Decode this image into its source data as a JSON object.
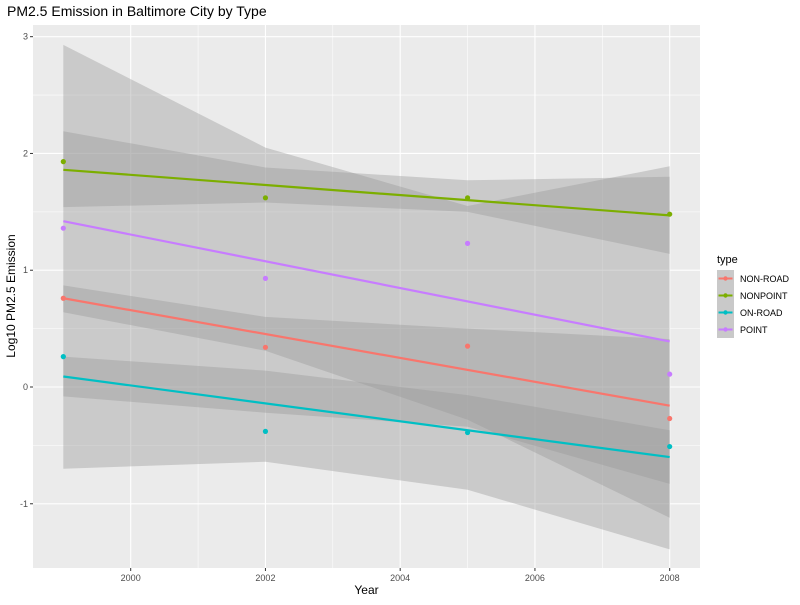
{
  "chart_data": {
    "type": "scatter",
    "title": "PM2.5 Emission in Baltimore City by Type",
    "xlabel": "Year",
    "ylabel": "Log10 PM2.5 Emission",
    "xlim": [
      1998.55,
      2008.45
    ],
    "ylim": [
      -1.55,
      3.1
    ],
    "x_ticks": [
      2000,
      2002,
      2004,
      2006,
      2008
    ],
    "y_ticks": [
      -1,
      0,
      1,
      2,
      3
    ],
    "grid": true,
    "legend": {
      "title": "type",
      "position": "right"
    },
    "series": [
      {
        "name": "NON-ROAD",
        "color": "#F8766D",
        "points": [
          [
            1999,
            0.76
          ],
          [
            2002,
            0.34
          ],
          [
            2005,
            0.35
          ],
          [
            2008,
            -0.27
          ]
        ],
        "fit": {
          "start": [
            1999,
            0.76
          ],
          "end": [
            2008,
            -0.16
          ]
        },
        "ci_lower": [
          [
            1999,
            0.64
          ],
          [
            2002,
            0.31
          ],
          [
            2005,
            -0.28
          ],
          [
            2008,
            -1.12
          ]
        ],
        "ci_upper": [
          [
            1999,
            0.87
          ],
          [
            2002,
            0.6
          ],
          [
            2005,
            0.5
          ],
          [
            2008,
            0.41
          ]
        ]
      },
      {
        "name": "NONPOINT",
        "color": "#7CAE00",
        "points": [
          [
            1999,
            1.93
          ],
          [
            2002,
            1.62
          ],
          [
            2005,
            1.62
          ],
          [
            2008,
            1.48
          ]
        ],
        "fit": {
          "start": [
            1999,
            1.86
          ],
          "end": [
            2008,
            1.47
          ]
        },
        "ci_lower": [
          [
            1999,
            1.54
          ],
          [
            2002,
            1.58
          ],
          [
            2005,
            1.5
          ],
          [
            2008,
            1.14
          ]
        ],
        "ci_upper": [
          [
            1999,
            2.19
          ],
          [
            2002,
            1.88
          ],
          [
            2005,
            1.77
          ],
          [
            2008,
            1.8
          ]
        ]
      },
      {
        "name": "ON-ROAD",
        "color": "#00BFC4",
        "points": [
          [
            1999,
            0.26
          ],
          [
            2002,
            -0.38
          ],
          [
            2005,
            -0.39
          ],
          [
            2008,
            -0.51
          ]
        ],
        "fit": {
          "start": [
            1999,
            0.09
          ],
          "end": [
            2008,
            -0.6
          ]
        },
        "ci_lower": [
          [
            1999,
            -0.08
          ],
          [
            2002,
            -0.22
          ],
          [
            2005,
            -0.34
          ],
          [
            2008,
            -0.83
          ]
        ],
        "ci_upper": [
          [
            1999,
            0.26
          ],
          [
            2002,
            0.14
          ],
          [
            2005,
            -0.07
          ],
          [
            2008,
            -0.37
          ]
        ]
      },
      {
        "name": "POINT",
        "color": "#C77CFF",
        "points": [
          [
            1999,
            1.36
          ],
          [
            2002,
            0.93
          ],
          [
            2005,
            1.23
          ],
          [
            2008,
            0.11
          ]
        ],
        "fit": {
          "start": [
            1999,
            1.42
          ],
          "end": [
            2008,
            0.39
          ]
        },
        "ci_lower": [
          [
            1999,
            -0.7
          ],
          [
            2002,
            -0.64
          ],
          [
            2005,
            -0.88
          ],
          [
            2008,
            -1.39
          ]
        ],
        "ci_upper": [
          [
            1999,
            2.93
          ],
          [
            2002,
            2.05
          ],
          [
            2005,
            1.55
          ],
          [
            2008,
            1.89
          ]
        ]
      }
    ]
  }
}
